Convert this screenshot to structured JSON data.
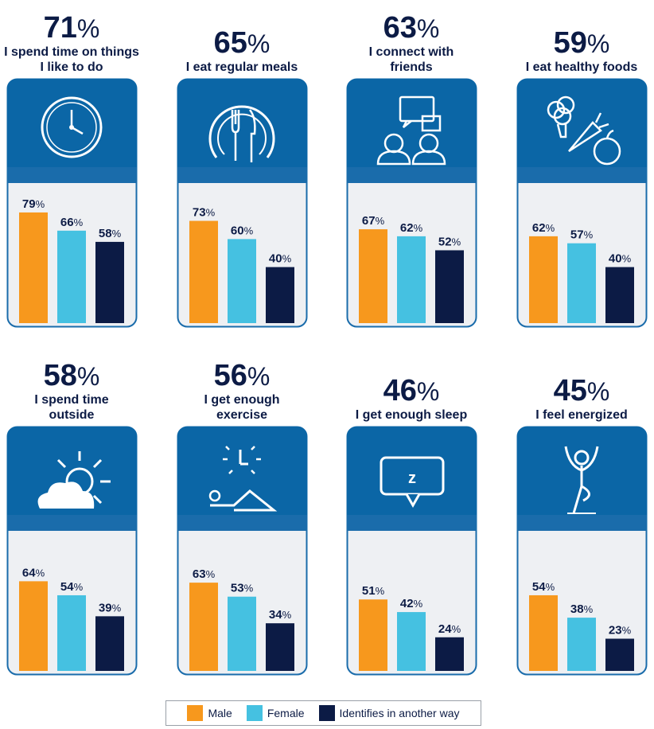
{
  "legend": [
    {
      "name": "Male",
      "color": "#f7981d"
    },
    {
      "name": "Female",
      "color": "#45c1e1"
    },
    {
      "name": "Identifies in another way",
      "color": "#0c1b45"
    }
  ],
  "chart_data": [
    {
      "type": "bar",
      "headline": 71,
      "headline_label": "71%",
      "title": "I spend time on things I like to do",
      "values": [
        79,
        66,
        58
      ],
      "value_labels": [
        "79%",
        "66%",
        "58%"
      ],
      "ylim": [
        0,
        100
      ]
    },
    {
      "type": "bar",
      "headline": 65,
      "headline_label": "65%",
      "title": "I eat regular meals",
      "values": [
        73,
        60,
        40
      ],
      "value_labels": [
        "73%",
        "60%",
        "40%"
      ],
      "ylim": [
        0,
        100
      ]
    },
    {
      "type": "bar",
      "headline": 63,
      "headline_label": "63%",
      "title": "I connect with friends",
      "values": [
        67,
        62,
        52
      ],
      "value_labels": [
        "67%",
        "62%",
        "52%"
      ],
      "ylim": [
        0,
        100
      ]
    },
    {
      "type": "bar",
      "headline": 59,
      "headline_label": "59%",
      "title": "I eat healthy foods",
      "values": [
        62,
        57,
        40
      ],
      "value_labels": [
        "62%",
        "57%",
        "40%"
      ],
      "ylim": [
        0,
        100
      ]
    },
    {
      "type": "bar",
      "headline": 58,
      "headline_label": "58%",
      "title": "I spend time outside",
      "values": [
        64,
        54,
        39
      ],
      "value_labels": [
        "64%",
        "54%",
        "39%"
      ],
      "ylim": [
        0,
        100
      ]
    },
    {
      "type": "bar",
      "headline": 56,
      "headline_label": "56%",
      "title": "I get enough exercise",
      "values": [
        63,
        53,
        34
      ],
      "value_labels": [
        "63%",
        "53%",
        "34%"
      ],
      "ylim": [
        0,
        100
      ]
    },
    {
      "type": "bar",
      "headline": 46,
      "headline_label": "46%",
      "title": "I get enough sleep",
      "values": [
        51,
        42,
        24
      ],
      "value_labels": [
        "51%",
        "42%",
        "24%"
      ],
      "ylim": [
        0,
        100
      ]
    },
    {
      "type": "bar",
      "headline": 45,
      "headline_label": "45%",
      "title": "I feel energized",
      "values": [
        54,
        38,
        23
      ],
      "value_labels": [
        "54%",
        "38%",
        "23%"
      ],
      "ylim": [
        0,
        100
      ]
    }
  ]
}
